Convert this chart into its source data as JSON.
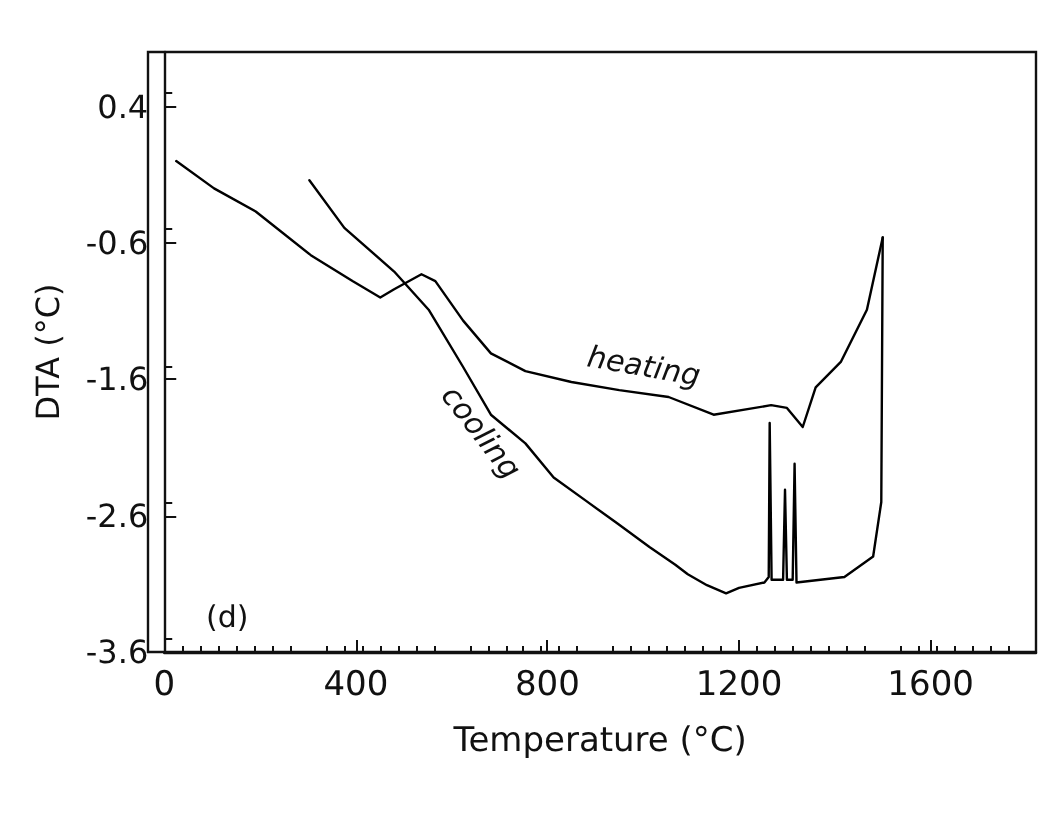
{
  "chart_data": {
    "type": "line",
    "xlabel": "Temperature (°C)",
    "ylabel": "DTA (°C)",
    "xlim": [
      0,
      1820
    ],
    "xticks": [
      0,
      400,
      800,
      1200,
      1600
    ],
    "ylim": [
      -3.6,
      0.8
    ],
    "yticks": [
      0.4,
      -0.6,
      -1.6,
      -2.6,
      -3.6
    ],
    "grid": false,
    "legend": false,
    "marker": "none",
    "line_style": "solid",
    "annotations": [
      "(d)"
    ],
    "series": [
      {
        "name": "heating",
        "color": "#000000",
        "x": [
          25,
          104,
          191,
          306,
          393,
          451,
          480,
          537,
          566,
          624,
          682,
          754,
          850,
          950,
          1053,
          1147,
          1267,
          1300,
          1333,
          1360,
          1413,
          1467,
          1500
        ],
        "values": [
          0.0,
          -0.2,
          -0.37,
          -0.69,
          -0.88,
          -1.0,
          -0.94,
          -0.83,
          -0.88,
          -1.17,
          -1.41,
          -1.54,
          -1.62,
          -1.68,
          -1.73,
          -1.86,
          -1.79,
          -1.81,
          -1.95,
          -1.66,
          -1.47,
          -1.09,
          -0.56
        ]
      },
      {
        "name": "cooling",
        "color": "#000000",
        "x": [
          303,
          376,
          480,
          552,
          624,
          682,
          754,
          813,
          880,
          947,
          1013,
          1067,
          1093,
          1133,
          1173,
          1200,
          1253,
          1262,
          1264,
          1268,
          1292,
          1296,
          1300,
          1312,
          1316,
          1320,
          1420,
          1480,
          1497,
          1500
        ],
        "values": [
          -0.14,
          -0.49,
          -0.81,
          -1.09,
          -1.51,
          -1.86,
          -2.07,
          -2.32,
          -2.49,
          -2.66,
          -2.83,
          -2.96,
          -3.03,
          -3.11,
          -3.17,
          -3.13,
          -3.09,
          -3.05,
          -1.92,
          -3.07,
          -3.07,
          -2.41,
          -3.07,
          -3.07,
          -2.22,
          -3.09,
          -3.05,
          -2.9,
          -2.5,
          -0.56
        ]
      }
    ]
  }
}
